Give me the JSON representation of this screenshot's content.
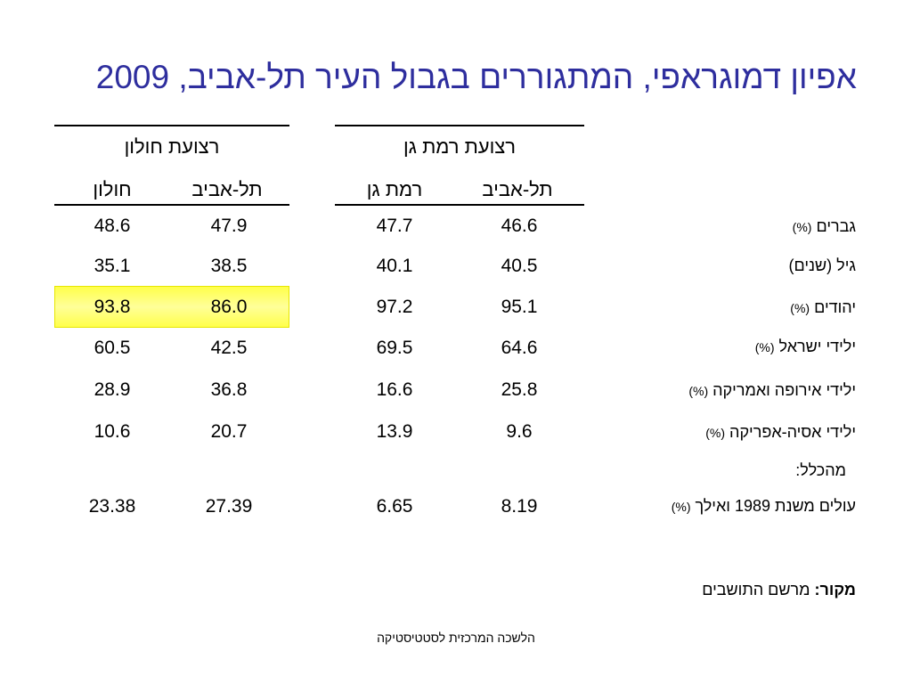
{
  "title": {
    "text": "אפיון דמוגראפי, המתגוררים בגבול העיר תל-אביב,",
    "year": "2009"
  },
  "groups": {
    "holon": {
      "label": "רצועת חולון",
      "col_holon": "חולון",
      "col_telaviv": "תל-אביב"
    },
    "ramatgan": {
      "label": "רצועת רמת גן",
      "col_ramatgan": "רמת גן",
      "col_telaviv": "תל-אביב"
    }
  },
  "rows": [
    {
      "label": "גברים",
      "unit": "(%)",
      "holon": "48.6",
      "holon_ta": "47.9",
      "ramatgan": "47.7",
      "ramatgan_ta": "46.6"
    },
    {
      "label": "גיל (שנים)",
      "unit": "",
      "holon": "35.1",
      "holon_ta": "38.5",
      "ramatgan": "40.1",
      "ramatgan_ta": "40.5"
    },
    {
      "label": "יהודים",
      "unit": "(%)",
      "holon": "93.8",
      "holon_ta": "86.0",
      "ramatgan": "97.2",
      "ramatgan_ta": "95.1"
    },
    {
      "label": "ילידי ישראל",
      "unit": "(%)",
      "holon": "60.5",
      "holon_ta": "42.5",
      "ramatgan": "69.5",
      "ramatgan_ta": "64.6"
    },
    {
      "label": "ילידי אירופה ואמריקה",
      "unit": "(%)",
      "holon": "28.9",
      "holon_ta": "36.8",
      "ramatgan": "16.6",
      "ramatgan_ta": "25.8"
    },
    {
      "label": "ילידי אסיה-אפריקה",
      "unit": "(%)",
      "holon": "10.6",
      "holon_ta": "20.7",
      "ramatgan": "13.9",
      "ramatgan_ta": "9.6"
    },
    {
      "label": "עולים משנת 1989 ואילך",
      "unit": "(%)",
      "holon": "23.38",
      "holon_ta": "27.39",
      "ramatgan": "6.65",
      "ramatgan_ta": "8.19"
    }
  ],
  "subheading": "מהכלל:",
  "source": {
    "label": "מקור:",
    "text": "מרשם התושבים"
  },
  "footer": "הלשכה המרכזית לסטטיסטיקה",
  "colors": {
    "title": "#2e2e9e",
    "highlight": "#ffff66"
  }
}
